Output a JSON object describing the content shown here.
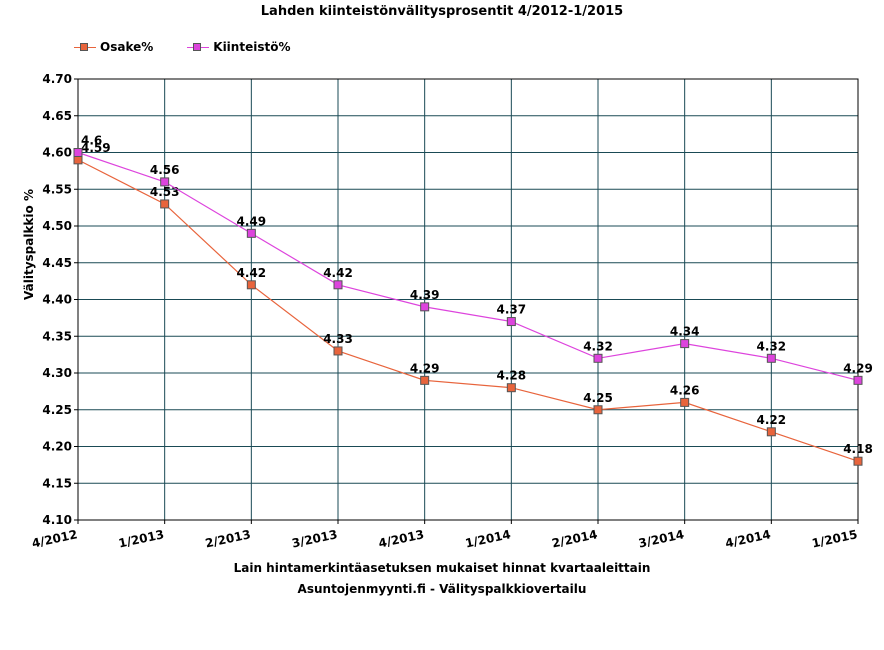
{
  "chart_data": {
    "type": "line",
    "title": "Lahden kiinteistönvälitysprosentit 4/2012-1/2015",
    "xlabel": "Lain hintamerkintäasetuksen mukaiset hinnat kvartaaleittain",
    "subtitle": "Asuntojenmyynti.fi - Välityspalkkiovertailu",
    "ylabel": "Välityspalkkio %",
    "categories": [
      "4/2012",
      "1/2013",
      "2/2013",
      "3/2013",
      "4/2013",
      "1/2014",
      "2/2014",
      "3/2014",
      "4/2014",
      "1/2015"
    ],
    "ylim": [
      4.1,
      4.7
    ],
    "yticks": [
      "4.10",
      "4.15",
      "4.20",
      "4.25",
      "4.30",
      "4.35",
      "4.40",
      "4.45",
      "4.50",
      "4.55",
      "4.60",
      "4.65",
      "4.70"
    ],
    "grid": true,
    "legend_position": "top-left",
    "series": [
      {
        "name": "Osake%",
        "color": "#e8643c",
        "values": [
          4.59,
          4.53,
          4.42,
          4.33,
          4.29,
          4.28,
          4.25,
          4.26,
          4.22,
          4.18
        ],
        "labels": [
          "4.59",
          "4.53",
          "4.42",
          "4.33",
          "4.29",
          "4.28",
          "4.25",
          "4.26",
          "4.22",
          "4.18"
        ]
      },
      {
        "name": "Kiinteistö%",
        "color": "#dd44dd",
        "values": [
          4.6,
          4.56,
          4.49,
          4.42,
          4.39,
          4.37,
          4.32,
          4.34,
          4.32,
          4.29
        ],
        "labels": [
          "4.6",
          "4.56",
          "4.49",
          "4.42",
          "4.39",
          "4.37",
          "4.32",
          "4.34",
          "4.32",
          "4.29"
        ]
      }
    ]
  }
}
